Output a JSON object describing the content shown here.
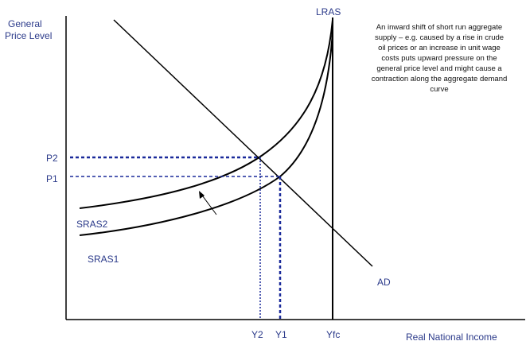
{
  "diagram": {
    "y_axis_label": [
      "General",
      "Price Level"
    ],
    "x_axis_label": "Real National Income",
    "curves": {
      "lras": "LRAS",
      "ad": "AD",
      "sras1": "SRAS1",
      "sras2": "SRAS2"
    },
    "price_levels": {
      "p1": "P1",
      "p2": "P2"
    },
    "incomes": {
      "y1": "Y1",
      "y2": "Y2",
      "yfc": "Yfc"
    },
    "annotation": [
      "An inward shift of short run aggregate",
      "supply – e.g. caused by a rise in crude",
      "oil prices or an increase in unit wage",
      "costs puts upward pressure on the",
      "general price level and might cause a",
      "contraction along the aggregate demand",
      "curve"
    ]
  }
}
